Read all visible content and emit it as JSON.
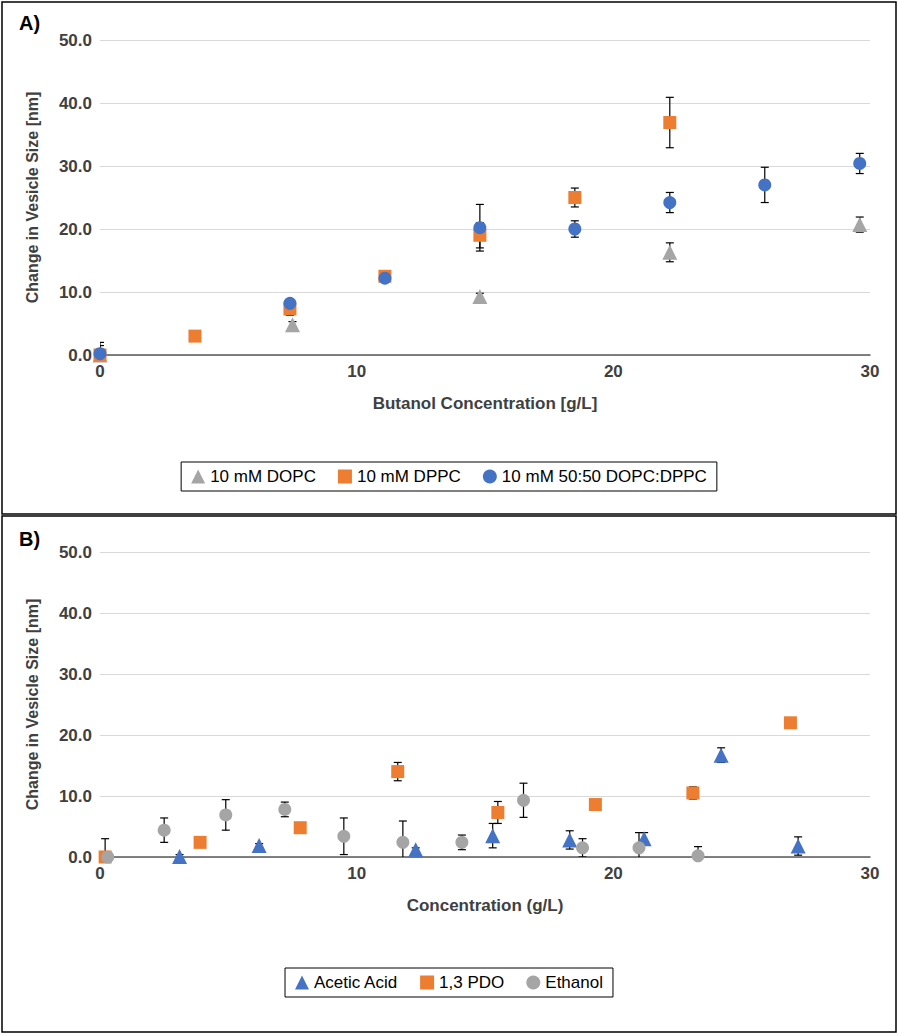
{
  "chart_data": [
    {
      "type": "scatter",
      "title": "A)",
      "x_label": "Butanol Concentration [g/L]",
      "y_label": "Change in Vesicle Size [nm]",
      "xlim": [
        0,
        30
      ],
      "xticks": [
        0,
        10,
        20,
        30
      ],
      "ylim": [
        0,
        50
      ],
      "yticks": [
        {
          "value": 0,
          "label": "0.0"
        },
        {
          "value": 10,
          "label": "10.0"
        },
        {
          "value": 20,
          "label": "20.0"
        },
        {
          "value": 30,
          "label": "30.0"
        },
        {
          "value": 40,
          "label": "40.0"
        },
        {
          "value": 50,
          "label": "50.0"
        }
      ],
      "grid": true,
      "legend": "bottom",
      "series": [
        {
          "name": "10 mM DOPC",
          "color": "#a5a5a5",
          "marker": "triangle",
          "x": [
            0,
            7.5,
            14.8,
            22.2,
            29.6
          ],
          "values": [
            0,
            4.8,
            9.3,
            16.3,
            20.7
          ],
          "errors": [
            0.5,
            0.5,
            0.5,
            1.5,
            1.2
          ]
        },
        {
          "name": "10 mM DPPC",
          "color": "#ed7d31",
          "marker": "square",
          "x": [
            0,
            3.7,
            7.4,
            11.1,
            14.8,
            18.5,
            22.2
          ],
          "values": [
            0,
            3.0,
            7.3,
            12.5,
            19.0,
            25.0,
            36.9
          ],
          "errors": [
            1.5,
            0.3,
            1.0,
            0.8,
            2.0,
            1.5,
            4.0
          ]
        },
        {
          "name": "10 mM 50:50 DOPC:DPPC",
          "color": "#4472c4",
          "marker": "circle",
          "x": [
            0,
            7.4,
            11.1,
            14.8,
            18.5,
            22.2,
            25.9,
            29.6
          ],
          "values": [
            0.2,
            8.2,
            12.2,
            20.2,
            20.0,
            24.2,
            27.0,
            30.4
          ],
          "errors": [
            1.8,
            0.5,
            0.5,
            3.7,
            1.3,
            1.6,
            2.8,
            1.6
          ]
        }
      ]
    },
    {
      "type": "scatter",
      "title": "B)",
      "x_label": "Concentration (g/L)",
      "y_label": "Change in Vesicle Size [nm]",
      "xlim": [
        0,
        30
      ],
      "xticks": [
        0,
        10,
        20,
        30
      ],
      "ylim": [
        0,
        50
      ],
      "yticks": [
        {
          "value": 0,
          "label": "0.0"
        },
        {
          "value": 10,
          "label": "10.0"
        },
        {
          "value": 20,
          "label": "20.0"
        },
        {
          "value": 30,
          "label": "30.0"
        },
        {
          "value": 40,
          "label": "40.0"
        },
        {
          "value": 50,
          "label": "50.0"
        }
      ],
      "grid": true,
      "legend": "bottom",
      "series": [
        {
          "name": "Acetic Acid",
          "color": "#4472c4",
          "marker": "triangle",
          "x": [
            3.1,
            6.2,
            12.3,
            15.3,
            18.3,
            21.2,
            24.2,
            27.2
          ],
          "values": [
            0.1,
            1.9,
            1.2,
            3.5,
            2.8,
            3.0,
            16.7,
            1.8
          ],
          "errors": [
            0.3,
            0.3,
            0.3,
            2.0,
            1.5,
            1.0,
            1.2,
            1.5
          ]
        },
        {
          "name": "1,3 PDO",
          "color": "#ed7d31",
          "marker": "square",
          "x": [
            0.2,
            3.9,
            7.8,
            11.6,
            15.5,
            19.3,
            23.1,
            26.9
          ],
          "values": [
            0,
            2.4,
            4.8,
            14.0,
            7.3,
            8.6,
            10.5,
            22.0
          ],
          "errors": [
            3.0,
            0.5,
            0.5,
            1.5,
            1.8,
            0.8,
            1.0,
            0.8
          ]
        },
        {
          "name": "Ethanol",
          "color": "#a5a5a5",
          "marker": "circle",
          "x": [
            0.3,
            2.5,
            4.9,
            7.2,
            9.5,
            11.8,
            14.1,
            16.5,
            18.8,
            21.0,
            23.3
          ],
          "values": [
            0,
            4.4,
            6.9,
            7.8,
            3.4,
            2.4,
            2.4,
            9.3,
            1.5,
            1.5,
            0.2
          ],
          "errors": [
            0.3,
            2.0,
            2.5,
            1.2,
            3.0,
            3.5,
            1.2,
            2.8,
            1.5,
            2.5,
            1.5
          ]
        }
      ]
    }
  ]
}
